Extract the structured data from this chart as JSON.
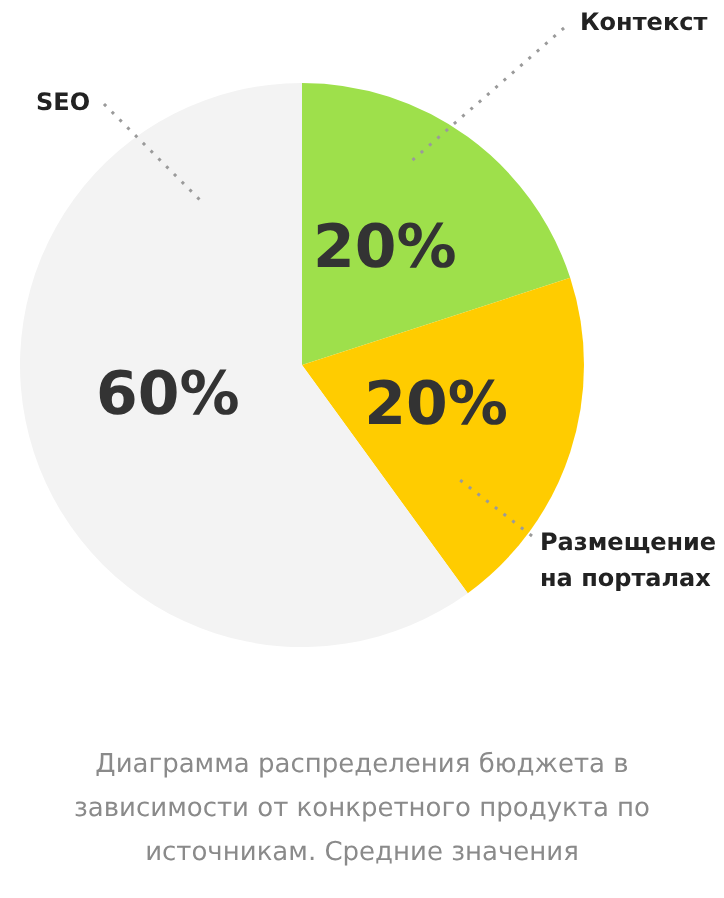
{
  "chart_data": {
    "type": "pie",
    "categories": [
      "Контекст",
      "Размещение на порталах",
      "SEO"
    ],
    "values": [
      20,
      20,
      60
    ],
    "colors": [
      "#9ee04b",
      "#ffcc00",
      "#f3f3f3"
    ],
    "value_labels": [
      "20%",
      "20%",
      "60%"
    ],
    "legend": false,
    "annotations": [
      "Диаграмма распределения бюджета в зависимости от конкретного продукта по источникам. Средние значения"
    ]
  }
}
